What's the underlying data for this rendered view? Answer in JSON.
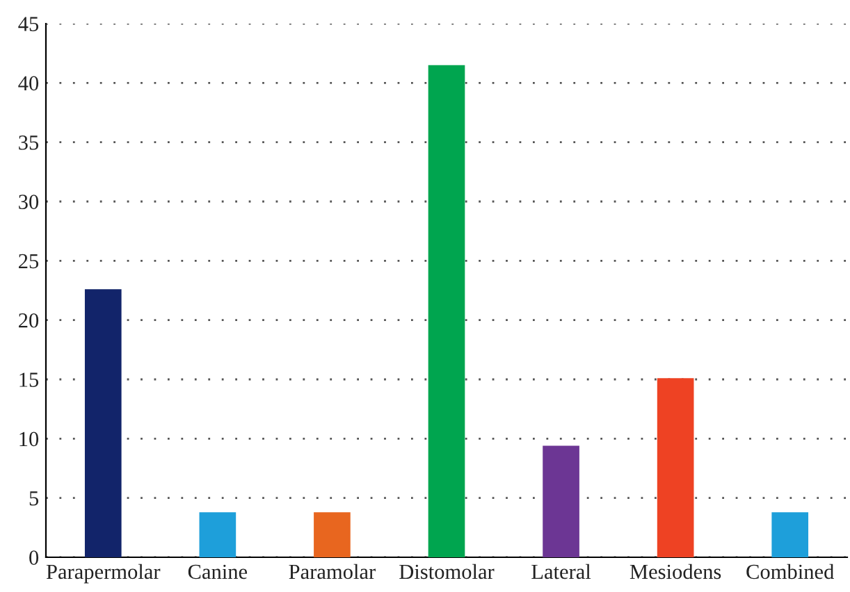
{
  "chart_data": {
    "type": "bar",
    "categories": [
      "Parapermolar",
      "Canine",
      "Paramolar",
      "Distomolar",
      "Lateral",
      "Mesiodens",
      "Combined"
    ],
    "values": [
      22.6,
      3.8,
      3.8,
      41.5,
      9.4,
      15.1,
      3.8
    ],
    "colors": [
      "#12246a",
      "#1e9fda",
      "#e8661f",
      "#00a54f",
      "#6c3694",
      "#ee4223",
      "#1e9fda"
    ],
    "ylim": [
      0,
      45
    ],
    "yticks": [
      0,
      5,
      10,
      15,
      20,
      25,
      30,
      35,
      40,
      45
    ],
    "grid": "y"
  }
}
